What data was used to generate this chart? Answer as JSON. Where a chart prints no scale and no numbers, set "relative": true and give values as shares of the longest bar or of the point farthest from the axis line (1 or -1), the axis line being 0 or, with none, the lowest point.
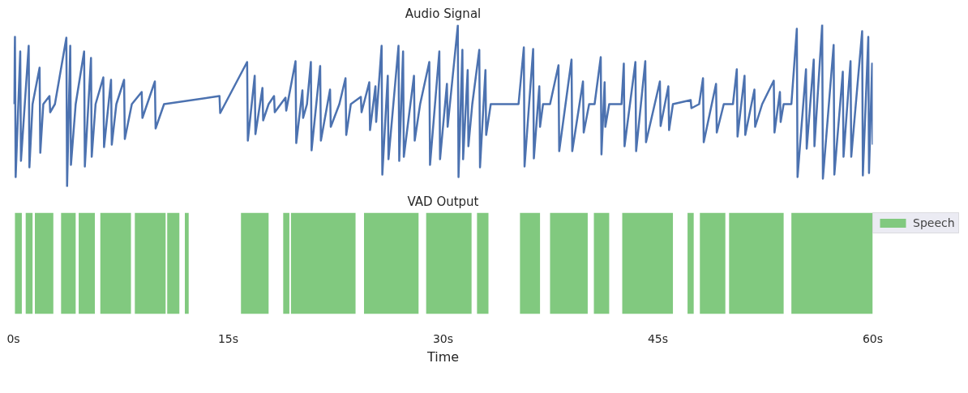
{
  "chart_data": [
    {
      "type": "line",
      "title": "Audio Signal",
      "relative": true,
      "tick_labels": false,
      "grid": false,
      "line_style": "solid",
      "marker": "none",
      "xlim": [
        0,
        60
      ],
      "series": [
        {
          "color": "#4c72b0",
          "x": [
            0.05,
            0.11,
            0.16,
            0.48,
            0.53,
            1.07,
            1.12,
            1.34,
            1.83,
            1.88,
            2.09,
            2.52,
            2.57,
            2.9,
            3.7,
            3.75,
            3.97,
            4.02,
            4.35,
            4.94,
            4.99,
            5.42,
            5.47,
            5.74,
            6.28,
            6.33,
            6.82,
            6.87,
            7.19,
            7.73,
            7.78,
            8.27,
            8.96,
            9.01,
            9.88,
            9.93,
            10.52,
            14.39,
            14.44,
            16.32,
            16.37,
            16.85,
            16.9,
            17.39,
            17.44,
            17.82,
            18.2,
            18.25,
            19.0,
            19.05,
            19.7,
            19.75,
            20.18,
            20.23,
            20.5,
            20.77,
            20.82,
            21.42,
            21.47,
            22.11,
            22.16,
            22.76,
            23.19,
            23.24,
            23.56,
            24.26,
            24.31,
            24.85,
            24.9,
            25.28,
            25.33,
            25.71,
            25.76,
            26.14,
            26.19,
            26.89,
            26.94,
            27.21,
            27.26,
            27.97,
            28.02,
            28.4,
            29.04,
            29.09,
            29.74,
            29.79,
            30.27,
            30.32,
            31.03,
            31.08,
            31.35,
            31.4,
            31.72,
            31.77,
            32.04,
            32.53,
            32.58,
            32.96,
            33.01,
            33.33,
            35.27,
            35.64,
            35.69,
            36.29,
            36.34,
            36.72,
            36.77,
            36.98,
            37.47,
            38.06,
            38.11,
            38.97,
            39.02,
            39.77,
            39.82,
            40.2,
            40.58,
            41.01,
            41.06,
            41.28,
            41.33,
            41.6,
            42.46,
            42.62,
            42.67,
            43.43,
            43.48,
            44.12,
            44.17,
            45.14,
            45.19,
            45.73,
            45.78,
            46.05,
            47.29,
            47.34,
            47.88,
            48.15,
            48.2,
            49.06,
            49.11,
            49.6,
            50.24,
            50.51,
            50.56,
            51.05,
            51.1,
            51.74,
            51.79,
            52.28,
            53.09,
            53.14,
            53.52,
            53.57,
            53.78,
            54.32,
            54.7,
            54.75,
            55.34,
            55.39,
            55.88,
            55.93,
            56.47,
            56.52,
            57.27,
            57.32,
            57.91,
            57.96,
            58.45,
            58.5,
            59.26,
            59.31,
            59.69,
            59.74,
            59.96,
            60.0
          ],
          "values": [
            0.51,
            0.925,
            0.06,
            0.835,
            0.16,
            0.87,
            0.12,
            0.51,
            0.735,
            0.21,
            0.51,
            0.56,
            0.46,
            0.51,
            0.92,
            0.0,
            0.87,
            0.135,
            0.51,
            0.835,
            0.125,
            0.795,
            0.185,
            0.51,
            0.675,
            0.245,
            0.66,
            0.26,
            0.51,
            0.66,
            0.295,
            0.51,
            0.585,
            0.425,
            0.65,
            0.36,
            0.51,
            0.56,
            0.455,
            0.77,
            0.285,
            0.685,
            0.325,
            0.61,
            0.41,
            0.51,
            0.56,
            0.46,
            0.55,
            0.47,
            0.775,
            0.27,
            0.595,
            0.425,
            0.51,
            0.77,
            0.225,
            0.745,
            0.285,
            0.6,
            0.37,
            0.51,
            0.67,
            0.32,
            0.51,
            0.555,
            0.46,
            0.645,
            0.35,
            0.62,
            0.4,
            0.87,
            0.075,
            0.685,
            0.17,
            0.87,
            0.16,
            0.835,
            0.185,
            0.685,
            0.285,
            0.51,
            0.77,
            0.135,
            0.835,
            0.17,
            0.635,
            0.37,
            0.995,
            0.06,
            0.845,
            0.17,
            0.72,
            0.25,
            0.51,
            0.845,
            0.12,
            0.72,
            0.32,
            0.51,
            0.51,
            0.86,
            0.125,
            0.85,
            0.175,
            0.62,
            0.37,
            0.51,
            0.51,
            0.75,
            0.22,
            0.785,
            0.22,
            0.65,
            0.335,
            0.51,
            0.51,
            0.8,
            0.2,
            0.645,
            0.37,
            0.51,
            0.51,
            0.76,
            0.25,
            0.77,
            0.22,
            0.775,
            0.275,
            0.65,
            0.375,
            0.62,
            0.35,
            0.51,
            0.535,
            0.485,
            0.51,
            0.67,
            0.275,
            0.635,
            0.335,
            0.51,
            0.51,
            0.725,
            0.31,
            0.685,
            0.32,
            0.6,
            0.37,
            0.51,
            0.655,
            0.335,
            0.585,
            0.4,
            0.51,
            0.51,
            0.975,
            0.06,
            0.725,
            0.235,
            0.785,
            0.25,
            1.0,
            0.05,
            0.875,
            0.075,
            0.71,
            0.185,
            0.775,
            0.185,
            0.96,
            0.07,
            0.925,
            0.085,
            0.76,
            0.26
          ]
        }
      ]
    },
    {
      "type": "area",
      "title": "VAD Output",
      "xlabel": "Time",
      "relative": true,
      "tick_labels": "x",
      "grid": false,
      "legend": "top right",
      "xlim": [
        0,
        60
      ],
      "xticks": [
        {
          "value": 0,
          "label": "0s"
        },
        {
          "value": 15,
          "label": "15s"
        },
        {
          "value": 30,
          "label": "30s"
        },
        {
          "value": 45,
          "label": "45s"
        },
        {
          "value": 60,
          "label": "60s"
        }
      ],
      "series": [
        {
          "name": "Speech",
          "color": "#81c97f",
          "x": [
            0.11,
            0.11,
            0.59,
            0.59,
            0.86,
            0.86,
            1.34,
            1.34,
            1.5,
            1.5,
            2.79,
            2.79,
            3.33,
            3.33,
            4.35,
            4.35,
            4.56,
            4.56,
            5.69,
            5.69,
            6.07,
            6.07,
            8.21,
            8.21,
            8.48,
            8.48,
            10.63,
            10.63,
            10.74,
            10.74,
            11.59,
            11.59,
            11.97,
            11.97,
            12.24,
            12.24,
            15.89,
            15.89,
            17.82,
            17.82,
            18.84,
            18.84,
            19.27,
            19.27,
            19.38,
            19.38,
            23.89,
            23.89,
            24.48,
            24.48,
            28.29,
            28.29,
            28.82,
            28.82,
            31.99,
            31.99,
            32.37,
            32.37,
            33.17,
            33.17,
            35.37,
            35.37,
            36.77,
            36.77,
            37.47,
            37.47,
            40.1,
            40.1,
            40.53,
            40.53,
            41.6,
            41.6,
            42.51,
            42.51,
            46.05,
            46.05,
            47.07,
            47.07,
            47.5,
            47.5,
            47.93,
            47.93,
            49.71,
            49.71,
            49.97,
            49.97,
            53.78,
            53.78,
            54.32,
            54.32,
            60.0,
            60.0
          ],
          "values": [
            0,
            1,
            1,
            0,
            0,
            1,
            1,
            0,
            0,
            1,
            1,
            0,
            0,
            1,
            1,
            0,
            0,
            1,
            1,
            0,
            0,
            1,
            1,
            0,
            0,
            1,
            1,
            0,
            0,
            1,
            1,
            0,
            0,
            1,
            1,
            0,
            0,
            1,
            1,
            0,
            0,
            1,
            1,
            0,
            0,
            1,
            1,
            0,
            0,
            1,
            1,
            0,
            0,
            1,
            1,
            0,
            0,
            1,
            1,
            0,
            0,
            1,
            1,
            0,
            0,
            1,
            1,
            0,
            0,
            1,
            1,
            0,
            0,
            1,
            1,
            0,
            0,
            1,
            1,
            0,
            0,
            1,
            1,
            0,
            0,
            1,
            1,
            0,
            0,
            1,
            1,
            0
          ]
        }
      ]
    }
  ]
}
